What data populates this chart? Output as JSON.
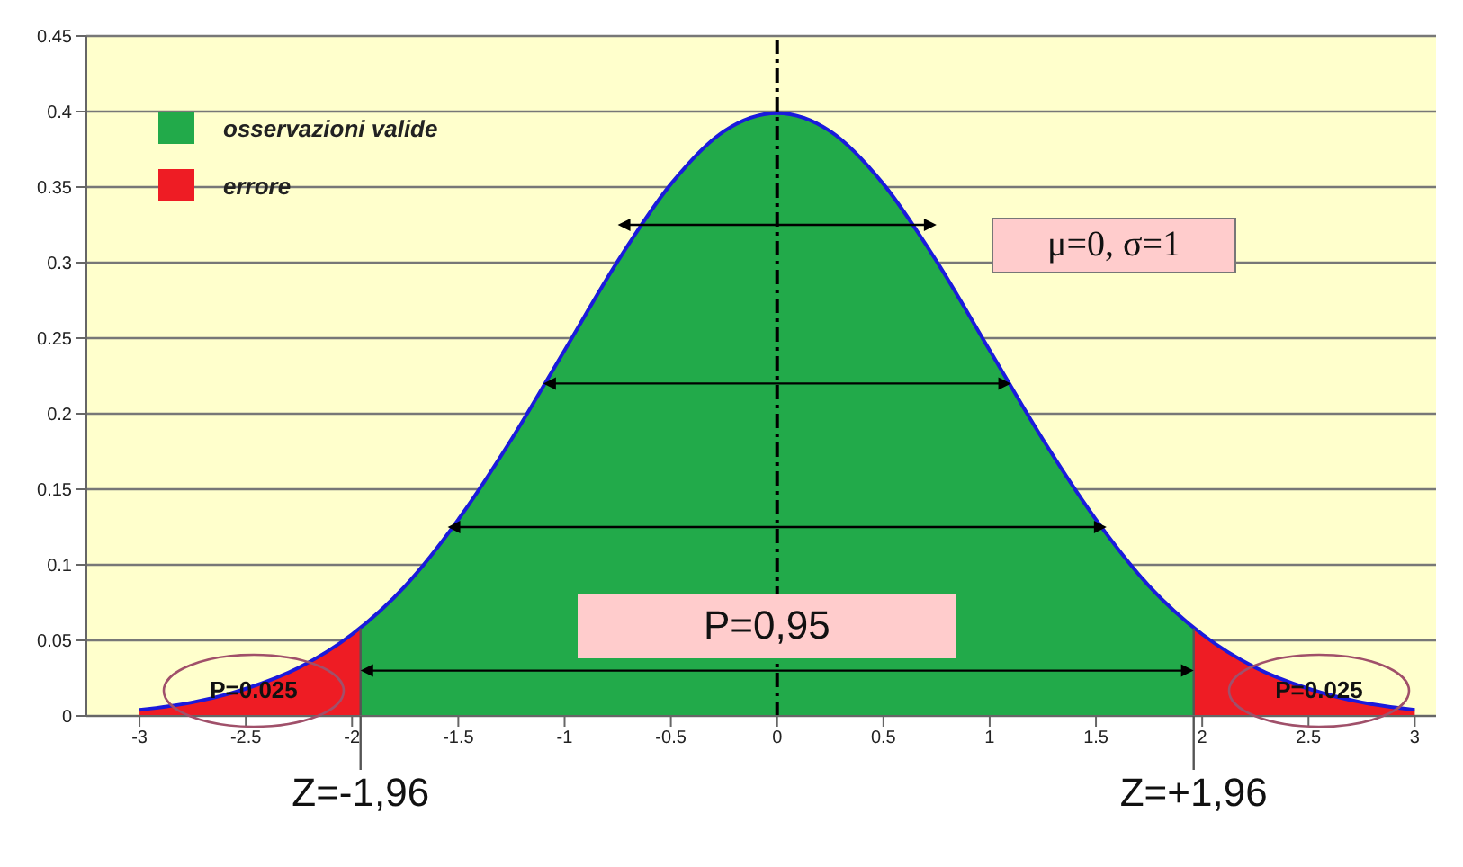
{
  "chart_data": {
    "type": "area",
    "xlim": [
      -3.25,
      3.1
    ],
    "ylim": [
      0,
      0.45
    ],
    "xticks": [
      -3,
      -2.5,
      -2,
      -1.5,
      -1,
      -0.5,
      0,
      0.5,
      1,
      1.5,
      2,
      2.5,
      3
    ],
    "yticks": [
      0,
      0.05,
      0.1,
      0.15,
      0.2,
      0.25,
      0.3,
      0.35,
      0.4,
      0.45
    ],
    "grid": "y",
    "legend": "top left",
    "series": [
      {
        "name": "osservazioni valide",
        "color": "#22aa4a",
        "x": [
          -1.96,
          -1.75,
          -1.5,
          -1.25,
          -1,
          -0.75,
          -0.5,
          -0.25,
          0,
          0.25,
          0.5,
          0.75,
          1,
          1.25,
          1.5,
          1.75,
          1.96
        ],
        "values": [
          0.058,
          0.086,
          0.13,
          0.183,
          0.242,
          0.301,
          0.352,
          0.387,
          0.399,
          0.387,
          0.352,
          0.301,
          0.242,
          0.183,
          0.13,
          0.086,
          0.058
        ]
      },
      {
        "name": "errore",
        "color": "#ee1c24",
        "x": [
          -3,
          -2.75,
          -2.5,
          -2.25,
          -2,
          -1.96,
          0,
          1.96,
          2,
          2.25,
          2.5,
          2.75,
          3
        ],
        "values": [
          0.004,
          0.009,
          0.018,
          0.032,
          0.054,
          0.058,
          null,
          0.058,
          0.054,
          0.032,
          0.018,
          0.009,
          0.004
        ]
      },
      {
        "type": "line",
        "color": "#1a1adc",
        "x": [
          -3,
          -2.75,
          -2.5,
          -2.25,
          -2,
          -1.75,
          -1.5,
          -1.25,
          -1,
          -0.75,
          -0.5,
          -0.25,
          0,
          0.25,
          0.5,
          0.75,
          1,
          1.25,
          1.5,
          1.75,
          2,
          2.25,
          2.5,
          2.75,
          3
        ],
        "values": [
          0.004,
          0.009,
          0.018,
          0.032,
          0.054,
          0.086,
          0.13,
          0.183,
          0.242,
          0.301,
          0.352,
          0.387,
          0.399,
          0.387,
          0.352,
          0.301,
          0.242,
          0.183,
          0.13,
          0.086,
          0.054,
          0.032,
          0.018,
          0.009,
          0.004
        ]
      }
    ],
    "ref_lines": [
      {
        "axis": "x",
        "value": 0,
        "color": "#000000",
        "line_style": "dashed"
      },
      {
        "axis": "x",
        "value": -1.96,
        "label": "Z=-1,96",
        "color": "#555555"
      },
      {
        "axis": "x",
        "value": 1.96,
        "label": "Z=+1,96",
        "color": "#555555"
      }
    ],
    "annotations": [
      "μ=0, σ=1",
      "P=0,95",
      "P=0.025",
      "P=0.025"
    ]
  }
}
